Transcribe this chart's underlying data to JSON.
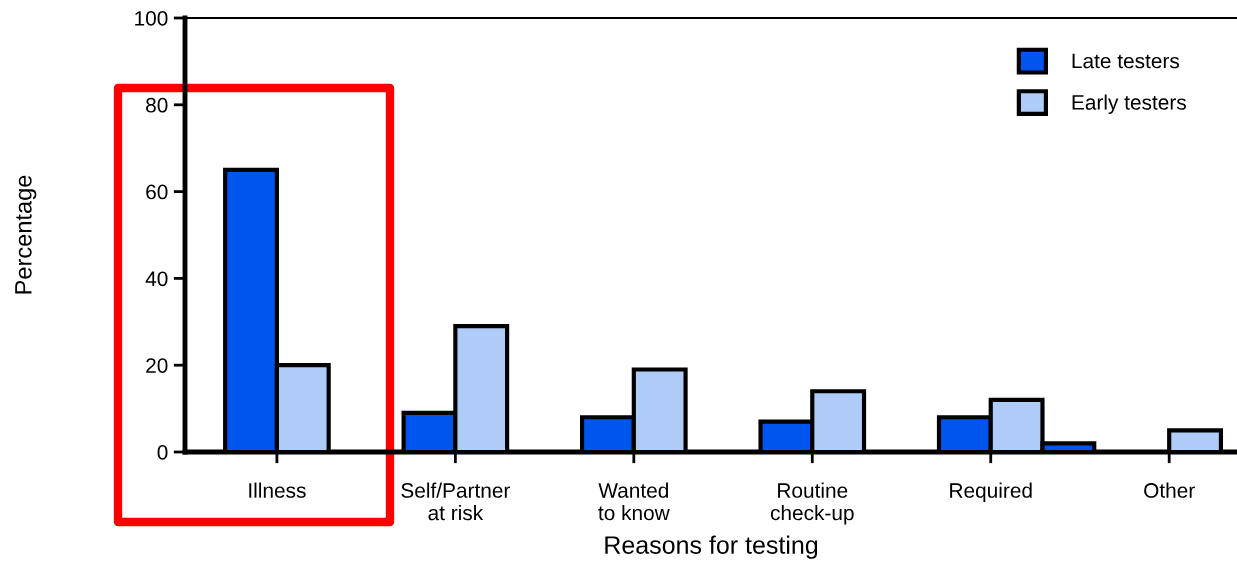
{
  "chart_data": {
    "type": "bar",
    "xlabel": "Reasons for testing",
    "ylabel": "Percentage",
    "categories": [
      "Illness",
      "Self/Partner\nat risk",
      "Wanted\nto know",
      "Routine\ncheck-up",
      "Required",
      "Other"
    ],
    "series": [
      {
        "name": "Late testers",
        "color": "#0055ee",
        "values": [
          65,
          9,
          8,
          7,
          8,
          null
        ]
      },
      {
        "name": "Early testers",
        "color": "#aeccf7",
        "values": [
          20,
          29,
          19,
          14,
          12,
          5
        ]
      },
      {
        "color": "#0055ee",
        "values": [
          null,
          null,
          null,
          null,
          2,
          null
        ]
      }
    ],
    "ylim": [
      0,
      100
    ],
    "yticks": [
      0,
      20,
      40,
      60,
      80,
      100
    ],
    "grid": false,
    "legend": "top right"
  }
}
